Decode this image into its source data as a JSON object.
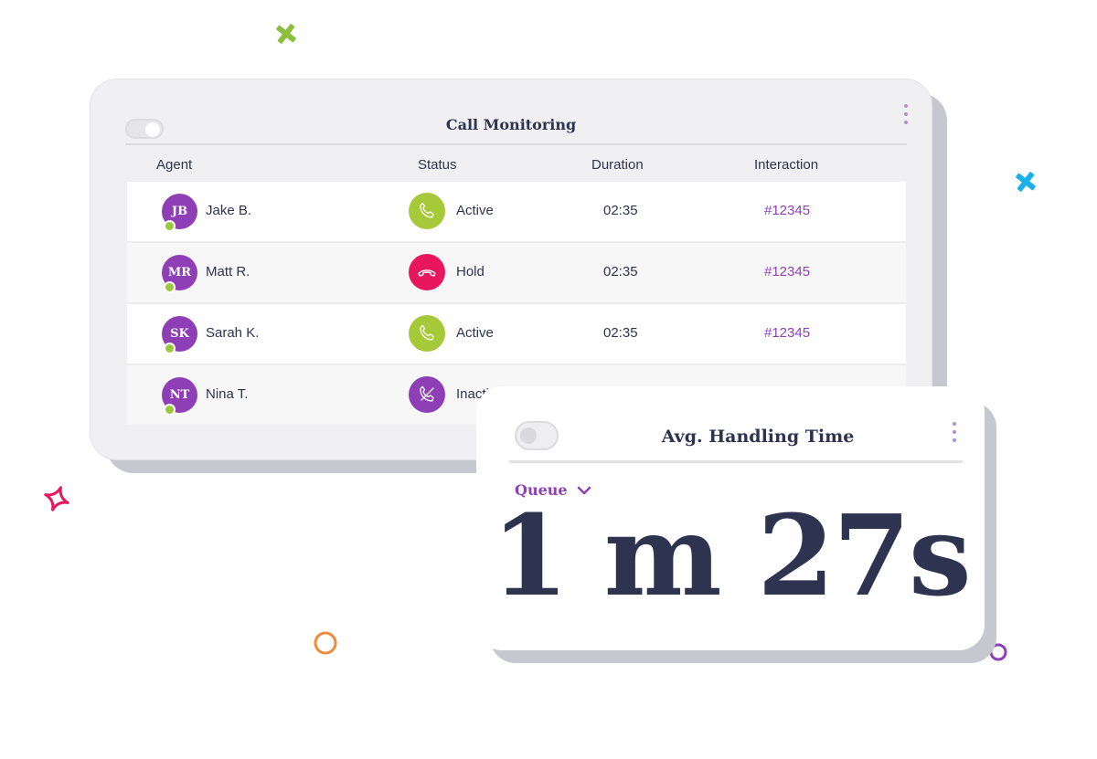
{
  "call_monitoring": {
    "title": "Call Monitoring",
    "columns": [
      "Agent",
      "Status",
      "Duration",
      "Interaction"
    ],
    "rows": [
      {
        "initials": "JB",
        "name": "Jake B.",
        "status": "Active",
        "status_icon": "phone-icon",
        "duration": "02:35",
        "interaction": "#12345"
      },
      {
        "initials": "MR",
        "name": "Matt R.",
        "status": "Hold",
        "status_icon": "phone-hangup-icon",
        "duration": "02:35",
        "interaction": "#12345"
      },
      {
        "initials": "SK",
        "name": "Sarah K.",
        "status": "Active",
        "status_icon": "phone-icon",
        "duration": "02:35",
        "interaction": "#12345"
      },
      {
        "initials": "NT",
        "name": "Nina T.",
        "status": "Inactive",
        "status_icon": "phone-off-icon",
        "duration": "",
        "interaction": ""
      }
    ]
  },
  "aht": {
    "title": "Avg. Handling Time",
    "queue_label": "Queue",
    "value": "1 m 27s"
  },
  "colors": {
    "navy": "#2e3350",
    "purple": "#8e3fb5",
    "active_green": "#a6c93a",
    "hold_red": "#e8175d",
    "online_green": "#9ac93b",
    "deco_green": "#8dbf3f",
    "deco_blue": "#1ab0e8",
    "deco_pink": "#e8175d",
    "deco_orange": "#f08a3c"
  }
}
